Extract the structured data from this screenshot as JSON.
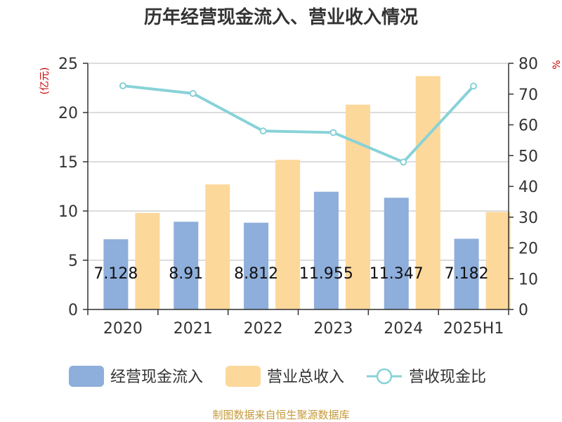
{
  "chart_data": {
    "type": "bar",
    "title": "历年经营现金流入、营业收入情况",
    "left_axis_unit": "(亿元)",
    "right_axis_unit": "%",
    "categories": [
      "2020",
      "2021",
      "2022",
      "2023",
      "2024",
      "2025H1"
    ],
    "ylim_left": [
      0,
      25
    ],
    "yticks_left": [
      "0",
      "5",
      "10",
      "15",
      "20",
      "25"
    ],
    "ylim_right": [
      0,
      80
    ],
    "yticks_right": [
      "0",
      "10",
      "20",
      "30",
      "40",
      "50",
      "60",
      "70",
      "80"
    ],
    "grid": true,
    "legend_position": "bottom",
    "series": [
      {
        "name": "经营现金流入",
        "type": "bar",
        "axis": "left",
        "color": "#8eaedb",
        "values": [
          7.128,
          8.91,
          8.812,
          11.955,
          11.347,
          7.182
        ],
        "labels": [
          "7.128",
          "8.91",
          "8.812",
          "11.955",
          "11.347",
          "7.182"
        ]
      },
      {
        "name": "营业总收入",
        "type": "bar",
        "axis": "left",
        "color": "#fdd89b",
        "values": [
          9.8,
          12.7,
          15.2,
          20.8,
          23.7,
          9.9
        ]
      },
      {
        "name": "营收现金比",
        "type": "line",
        "axis": "right",
        "color": "#88d2d8",
        "values": [
          72.7,
          70.2,
          58.0,
          57.5,
          47.9,
          72.6
        ]
      }
    ]
  },
  "source": "制图数据来自恒生聚源数据库"
}
